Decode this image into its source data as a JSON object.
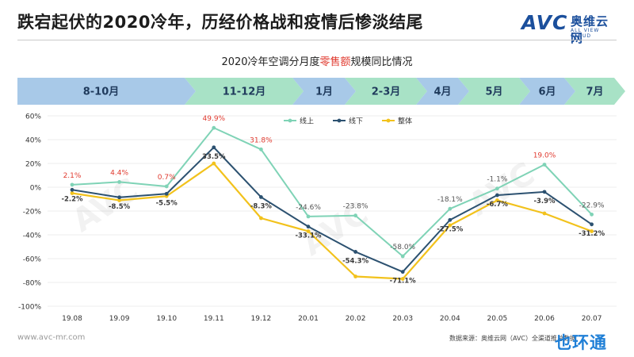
{
  "header": {
    "title": "跌宕起伏的2020冷年，历经价格战和疫情后惨淡结尾",
    "logo": {
      "brand": "AVC",
      "cn": "奥维云网",
      "en": "ALL VIEW CLOUD"
    }
  },
  "footer": {
    "url": "www.avc-mr.com",
    "source": "数据来源：奥维云网（AVC）全渠道推总数据",
    "corner_watermark": "也环通"
  },
  "colors": {
    "online": "#7fd3b6",
    "offline": "#2c5170",
    "overall": "#f2c21c",
    "label_red": "#e03a2f",
    "band_blue": "#a8c9e8",
    "band_green": "#a8e2c6",
    "band_text": "#1f3a5c"
  },
  "chart_data": {
    "type": "line",
    "title_prefix": "2020冷年空调分月度",
    "title_highlight": "零售额",
    "title_suffix": "规模同比情况",
    "categories": [
      "19.08",
      "19.09",
      "19.10",
      "19.11",
      "19.12",
      "20.01",
      "20.02",
      "20.03",
      "20.04",
      "20.05",
      "20.06",
      "20.07"
    ],
    "ylim": [
      -100,
      60
    ],
    "yticks": [
      "-100%",
      "-80%",
      "-60%",
      "-40%",
      "-20%",
      "0%",
      "20%",
      "40%",
      "60%"
    ],
    "ytick_values": [
      -100,
      -80,
      -60,
      -40,
      -20,
      0,
      20,
      40,
      60
    ],
    "legend": [
      "线上",
      "线下",
      "整体"
    ],
    "series": [
      {
        "name": "线上",
        "values": [
          2.1,
          4.4,
          0.7,
          49.9,
          31.8,
          -24.6,
          -23.8,
          -58.0,
          -18.1,
          -1.1,
          19.0,
          -22.9
        ],
        "labels": [
          "2.1%",
          "4.4%",
          "0.7%",
          "49.9%",
          "31.8%",
          "-24.6%",
          "-23.8%",
          "-58.0%",
          "-18.1%",
          "-1.1%",
          "19.0%",
          "-22.9%"
        ]
      },
      {
        "name": "线下",
        "values": [
          -2.2,
          -8.5,
          -5.5,
          33.5,
          -8.3,
          -33.1,
          -54.3,
          -71.1,
          -27.5,
          -6.7,
          -3.9,
          -31.2
        ],
        "labels": [
          "-2.2%",
          "-8.5%",
          "-5.5%",
          "33.5%",
          "-8.3%",
          "-33.1%",
          "-54.3%",
          "-71.1%",
          "-27.5%",
          "-6.7%",
          "-3.9%",
          "-31.2%"
        ]
      },
      {
        "name": "整体",
        "values": [
          -5,
          -11,
          -7.5,
          20,
          -26,
          -37,
          -75,
          -77,
          -32,
          -11,
          -22,
          -37
        ]
      }
    ],
    "period_bands": [
      {
        "label": "8-10月",
        "color": "blue"
      },
      {
        "label": "11-12月",
        "color": "green"
      },
      {
        "label": "1月",
        "color": "blue"
      },
      {
        "label": "2-3月",
        "color": "green"
      },
      {
        "label": "4月",
        "color": "blue"
      },
      {
        "label": "5月",
        "color": "green"
      },
      {
        "label": "6月",
        "color": "blue"
      },
      {
        "label": "7月",
        "color": "green"
      }
    ]
  }
}
